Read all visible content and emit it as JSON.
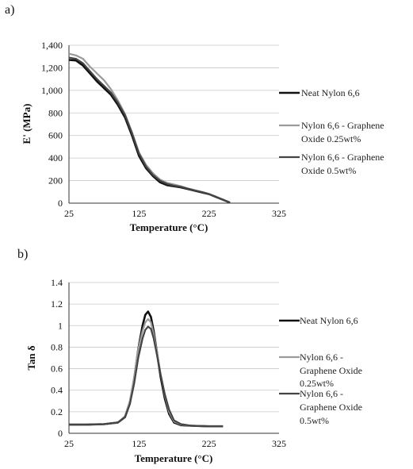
{
  "chart_data": [
    {
      "type": "line",
      "panel_label": "a)",
      "title": "",
      "xlabel": "Temperature (°C)",
      "ylabel": "E' (MPa)",
      "xlim": [
        25,
        325
      ],
      "ylim": [
        0,
        1400
      ],
      "x_ticks": [
        25,
        125,
        225,
        325
      ],
      "y_ticks": [
        0,
        200,
        400,
        600,
        800,
        1000,
        1200,
        1400
      ],
      "y_tick_labels": [
        "0",
        "200",
        "400",
        "600",
        "800",
        "1,000",
        "1,200",
        "1,400"
      ],
      "grid": "horizontal",
      "legend_position": "right",
      "series": [
        {
          "name": "Neat Nylon 6,6",
          "color": "#111111",
          "x": [
            25,
            35,
            45,
            55,
            65,
            75,
            85,
            95,
            105,
            110,
            115,
            120,
            125,
            135,
            145,
            155,
            165,
            175,
            185,
            195,
            205,
            215,
            225,
            235,
            245,
            255
          ],
          "y": [
            1270,
            1265,
            1220,
            1150,
            1080,
            1020,
            960,
            870,
            760,
            680,
            600,
            510,
            420,
            310,
            240,
            185,
            160,
            150,
            140,
            125,
            110,
            95,
            80,
            55,
            30,
            5
          ]
        },
        {
          "name": "Nylon 6,6 - Graphene Oxide 0.25wt%",
          "color": "#9a9a9a",
          "x": [
            25,
            35,
            45,
            55,
            65,
            75,
            85,
            95,
            105,
            110,
            115,
            120,
            125,
            135,
            145,
            155,
            165,
            175,
            185,
            195,
            205,
            215,
            225,
            235,
            245,
            255
          ],
          "y": [
            1325,
            1310,
            1280,
            1210,
            1150,
            1090,
            1010,
            910,
            790,
            710,
            630,
            540,
            450,
            340,
            265,
            210,
            180,
            165,
            150,
            130,
            115,
            100,
            82,
            58,
            32,
            6
          ]
        },
        {
          "name": "Nylon 6,6 - Graphene Oxide 0.5wt%",
          "color": "#444444",
          "x": [
            25,
            35,
            45,
            55,
            65,
            75,
            85,
            95,
            105,
            110,
            115,
            120,
            125,
            135,
            145,
            155,
            165,
            175,
            185,
            195,
            205,
            215,
            225,
            235,
            245,
            255
          ],
          "y": [
            1290,
            1280,
            1240,
            1170,
            1100,
            1040,
            980,
            890,
            780,
            700,
            620,
            530,
            440,
            325,
            250,
            200,
            170,
            155,
            145,
            128,
            112,
            98,
            80,
            56,
            31,
            5
          ]
        }
      ]
    },
    {
      "type": "line",
      "panel_label": "b)",
      "title": "",
      "xlabel": "Temperature (°C)",
      "ylabel": "Tan δ",
      "xlim": [
        25,
        325
      ],
      "ylim": [
        0,
        1.4
      ],
      "x_ticks": [
        25,
        125,
        225,
        325
      ],
      "y_ticks": [
        0,
        0.2,
        0.4,
        0.6,
        0.8,
        1,
        1.2,
        1.4
      ],
      "y_tick_labels": [
        "0",
        "0.2",
        "0.4",
        "0.6",
        "0.8",
        "1",
        "1.2",
        "1.4"
      ],
      "grid": "horizontal",
      "legend_position": "right",
      "series": [
        {
          "name": "Neat Nylon 6,6",
          "color": "#111111",
          "x": [
            25,
            50,
            75,
            95,
            105,
            112,
            118,
            124,
            130,
            134,
            138,
            142,
            146,
            150,
            156,
            162,
            168,
            175,
            185,
            200,
            225,
            245
          ],
          "y": [
            0.08,
            0.08,
            0.085,
            0.1,
            0.15,
            0.28,
            0.5,
            0.78,
            1.0,
            1.1,
            1.13,
            1.08,
            0.95,
            0.78,
            0.52,
            0.32,
            0.18,
            0.1,
            0.075,
            0.07,
            0.065,
            0.065
          ]
        },
        {
          "name": "Nylon 6,6 - Graphene Oxide 0.25wt%",
          "color": "#9a9a9a",
          "x": [
            25,
            50,
            75,
            95,
            105,
            112,
            118,
            124,
            130,
            134,
            138,
            142,
            146,
            150,
            156,
            162,
            168,
            175,
            185,
            200,
            225,
            245
          ],
          "y": [
            0.08,
            0.08,
            0.085,
            0.1,
            0.16,
            0.3,
            0.52,
            0.78,
            0.95,
            1.03,
            1.06,
            1.03,
            0.92,
            0.78,
            0.55,
            0.35,
            0.2,
            0.11,
            0.08,
            0.07,
            0.065,
            0.065
          ]
        },
        {
          "name": "Nylon 6,6 - Graphene Oxide 0.5wt%",
          "color": "#444444",
          "x": [
            25,
            50,
            75,
            95,
            105,
            112,
            118,
            124,
            130,
            134,
            138,
            142,
            146,
            150,
            156,
            162,
            168,
            175,
            185,
            200,
            225,
            245
          ],
          "y": [
            0.08,
            0.08,
            0.085,
            0.1,
            0.15,
            0.27,
            0.46,
            0.7,
            0.88,
            0.96,
            0.99,
            0.97,
            0.88,
            0.75,
            0.54,
            0.36,
            0.22,
            0.12,
            0.085,
            0.07,
            0.065,
            0.065
          ]
        }
      ]
    }
  ]
}
